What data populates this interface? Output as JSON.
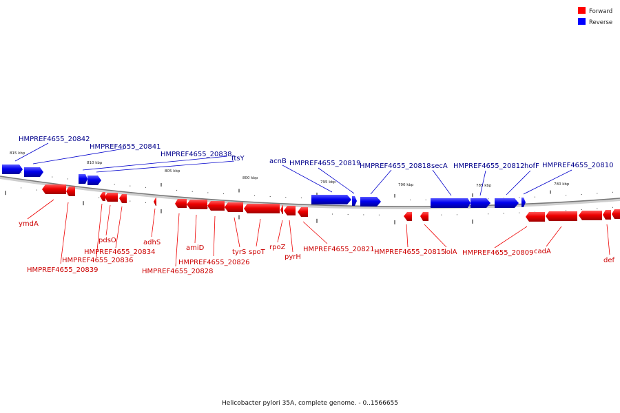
{
  "caption": "Helicobacter pylori 35A, complete genome. - 0..1566655",
  "legend": [
    {
      "label": "Forward",
      "color": "#ff0000"
    },
    {
      "label": "Reverse",
      "color": "#0000ff"
    }
  ],
  "colors": {
    "forward": "#ff0000",
    "reverse": "#0000ff",
    "backbone": "#888888",
    "forward_text": "#cc0000",
    "reverse_text": "#00008b"
  },
  "scale_ticks": [
    "815 kbp",
    "810 kbp",
    "805 kbp",
    "800 kbp",
    "795 kbp",
    "790 kbp",
    "785 kbp",
    "780 kbp"
  ],
  "reverse_labels": [
    "HMPREF4655_20842",
    "HMPREF4655_20841",
    "HMPREF4655_20838",
    "ftsY",
    "acnB",
    "HMPREF4655_20819",
    "HMPREF4655_20818",
    "secA",
    "HMPREF4655_20812",
    "hofF",
    "HMPREF4655_20810"
  ],
  "forward_labels": [
    "ymdA",
    "HMPREF4655_20839",
    "HMPREF4655_20836",
    "pdsO",
    "HMPREF4655_20834",
    "adhS",
    "HMPREF4655_20828",
    "amiD",
    "HMPREF4655_20826",
    "tyrS",
    "spoT",
    "rpoZ",
    "pyrH",
    "HMPREF4655_20821",
    "HMPREF4655_20815",
    "lolA",
    "HMPREF4655_20809",
    "cadA",
    "def"
  ]
}
